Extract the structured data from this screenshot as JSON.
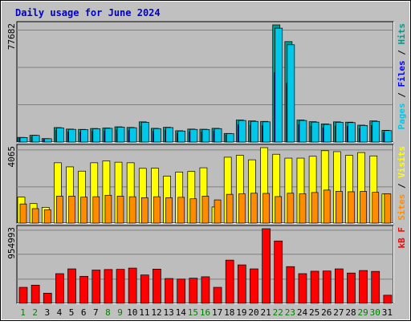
{
  "title": "Daily usage for June 2024",
  "colors": {
    "background": "#c0c0c0",
    "plot_bg": "#bdbdbd",
    "title": "#0000cc",
    "hits": "#009a8a",
    "files": "#0000ff",
    "pages": "#00c8e8",
    "visits": "#ffff00",
    "sites": "#ff8c00",
    "kbytes": "#ff0000",
    "weekend_day": "#008000",
    "weekday": "#000000"
  },
  "chart_data": [
    {
      "type": "bar",
      "panel": "hits",
      "ymax_label": "77682",
      "ylim": [
        0,
        77682
      ],
      "right_label_parts": [
        {
          "text": "Pages",
          "color_key": "pages"
        },
        {
          "text": " / ",
          "color_key": "weekday"
        },
        {
          "text": "Files",
          "color_key": "files"
        },
        {
          "text": " / ",
          "color_key": "weekday"
        },
        {
          "text": "Hits",
          "color_key": "hits"
        }
      ],
      "categories": [
        "1",
        "2",
        "3",
        "4",
        "5",
        "6",
        "7",
        "8",
        "9",
        "10",
        "11",
        "12",
        "13",
        "14",
        "15",
        "16",
        "17",
        "18",
        "19",
        "20",
        "21",
        "22",
        "23",
        "24",
        "25",
        "26",
        "27",
        "28",
        "29",
        "30",
        "31"
      ],
      "series": [
        {
          "name": "Hits",
          "color_key": "hits",
          "values": [
            3100,
            4500,
            2300,
            9600,
            8600,
            8400,
            9000,
            9300,
            10100,
            9700,
            13400,
            9100,
            9800,
            7500,
            8600,
            8500,
            9100,
            5700,
            14600,
            14000,
            13700,
            77682,
            66600,
            14600,
            13500,
            12000,
            13400,
            13200,
            11200,
            14000,
            7800
          ]
        },
        {
          "name": "Files",
          "color_key": "files",
          "values": [
            2400,
            3300,
            1700,
            7800,
            6800,
            6600,
            7100,
            7300,
            8000,
            7700,
            10600,
            7200,
            7700,
            6000,
            6800,
            6700,
            7300,
            4500,
            11500,
            11100,
            10800,
            46000,
            39000,
            11500,
            10700,
            9500,
            10600,
            10500,
            8900,
            11100,
            6200
          ]
        },
        {
          "name": "Pages",
          "color_key": "pages",
          "values": [
            3000,
            4400,
            2200,
            9400,
            8400,
            8200,
            8800,
            9100,
            9900,
            9500,
            13100,
            8900,
            9600,
            7300,
            8400,
            8300,
            8900,
            5600,
            14300,
            13700,
            13400,
            75500,
            64500,
            14300,
            13200,
            11700,
            13100,
            12900,
            11000,
            13700,
            7600
          ]
        }
      ]
    },
    {
      "type": "bar",
      "panel": "visits",
      "ymax_label": "4065",
      "ylim": [
        0,
        4065
      ],
      "right_label_parts": [
        {
          "text": "Sites",
          "color_key": "sites"
        },
        {
          "text": " / ",
          "color_key": "weekday"
        },
        {
          "text": "Visits",
          "color_key": "visits"
        }
      ],
      "categories": [
        "1",
        "2",
        "3",
        "4",
        "5",
        "6",
        "7",
        "8",
        "9",
        "10",
        "11",
        "12",
        "13",
        "14",
        "15",
        "16",
        "17",
        "18",
        "19",
        "20",
        "21",
        "22",
        "23",
        "24",
        "25",
        "26",
        "27",
        "28",
        "29",
        "30",
        "31"
      ],
      "series": [
        {
          "name": "Visits",
          "color_key": "visits",
          "values": [
            1400,
            1050,
            850,
            3250,
            3030,
            2800,
            3250,
            3350,
            3280,
            3250,
            2950,
            2960,
            2530,
            2750,
            2780,
            2980,
            870,
            3550,
            3650,
            3410,
            4065,
            3710,
            3500,
            3500,
            3600,
            3900,
            3850,
            3650,
            3800,
            3620,
            1570
          ]
        },
        {
          "name": "Sites",
          "color_key": "sites",
          "values": [
            1030,
            780,
            720,
            1450,
            1450,
            1400,
            1420,
            1500,
            1450,
            1420,
            1370,
            1420,
            1370,
            1390,
            1310,
            1450,
            1250,
            1550,
            1580,
            1610,
            1600,
            1430,
            1610,
            1580,
            1650,
            1780,
            1710,
            1690,
            1710,
            1660,
            1580
          ]
        }
      ]
    },
    {
      "type": "bar",
      "panel": "kbytes",
      "ymax_label": "954993",
      "ylim": [
        0,
        954993
      ],
      "right_label_parts": [
        {
          "text": "kB F",
          "color_key": "kbytes"
        }
      ],
      "categories": [
        "1",
        "2",
        "3",
        "4",
        "5",
        "6",
        "7",
        "8",
        "9",
        "10",
        "11",
        "12",
        "13",
        "14",
        "15",
        "16",
        "17",
        "18",
        "19",
        "20",
        "21",
        "22",
        "23",
        "24",
        "25",
        "26",
        "27",
        "28",
        "29",
        "30",
        "31"
      ],
      "series": [
        {
          "name": "kB F",
          "color_key": "kbytes",
          "values": [
            205000,
            233000,
            130000,
            380000,
            441000,
            346000,
            426000,
            433000,
            435000,
            451000,
            363000,
            438000,
            318000,
            310000,
            322000,
            340000,
            205000,
            553000,
            492000,
            441000,
            954993,
            798000,
            470000,
            380000,
            411000,
            414000,
            441000,
            388000,
            420000,
            409000,
            104000
          ]
        }
      ]
    }
  ],
  "x_labels": {
    "days": [
      "1",
      "2",
      "3",
      "4",
      "5",
      "6",
      "7",
      "8",
      "9",
      "10",
      "11",
      "12",
      "13",
      "14",
      "15",
      "16",
      "17",
      "18",
      "19",
      "20",
      "21",
      "22",
      "23",
      "24",
      "25",
      "26",
      "27",
      "28",
      "29",
      "30",
      "31"
    ],
    "weekend": [
      1,
      2,
      8,
      9,
      15,
      16,
      22,
      23,
      29,
      30
    ]
  }
}
